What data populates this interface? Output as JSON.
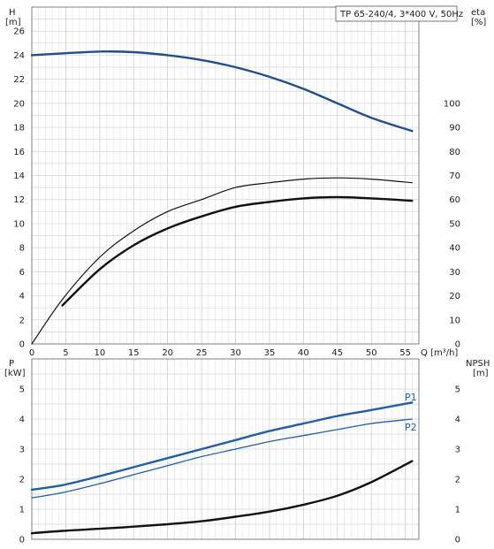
{
  "chart_data": [
    {
      "type": "line",
      "title": "TP 65-240/4, 3*400 V, 50Hz",
      "ylabel_left": "H",
      "ylabel_left_unit": "[m]",
      "ylabel_right": "eta",
      "ylabel_right_unit": "[%]",
      "xlabel": "Q [m³/h]",
      "xlim": [
        0,
        57
      ],
      "ylim_left": [
        0,
        28
      ],
      "ylim_right": [
        0,
        140
      ],
      "x_ticks": [
        0,
        5,
        10,
        15,
        20,
        25,
        30,
        35,
        40,
        45,
        50,
        55
      ],
      "y_ticks_left": [
        0,
        2,
        4,
        6,
        8,
        10,
        12,
        14,
        16,
        18,
        20,
        22,
        24,
        26
      ],
      "y_ticks_right": [
        0,
        10,
        20,
        30,
        40,
        50,
        60,
        70,
        80,
        90,
        100
      ],
      "grid": true,
      "series": [
        {
          "axis": "left",
          "color": "#1f4f8f",
          "x": [
            0,
            4.5,
            10,
            15,
            20,
            25,
            30,
            35,
            40,
            45,
            50,
            56
          ],
          "y": [
            24.0,
            24.15,
            24.3,
            24.25,
            24.0,
            23.6,
            23.0,
            22.2,
            21.2,
            20.0,
            18.8,
            17.7
          ]
        },
        {
          "axis": "right",
          "color": "#111111",
          "x": [
            0,
            4.5,
            10,
            15,
            20,
            25,
            30,
            35,
            40,
            45,
            50,
            56
          ],
          "y": [
            0,
            18.5,
            36,
            47,
            55,
            60,
            65,
            67,
            68.5,
            69,
            68.5,
            67
          ]
        },
        {
          "axis": "right",
          "color": "#111111",
          "x": [
            4.5,
            10,
            15,
            20,
            25,
            30,
            35,
            40,
            45,
            50,
            56
          ],
          "y": [
            16,
            31,
            41,
            48,
            53,
            57,
            59,
            60.5,
            61,
            60.5,
            59.5
          ]
        }
      ]
    },
    {
      "type": "line",
      "ylabel_left": "P",
      "ylabel_left_unit": "[kW]",
      "ylabel_right": "NPSH",
      "ylabel_right_unit": "[m]",
      "xlim": [
        0,
        57
      ],
      "ylim_left": [
        0,
        6
      ],
      "ylim_right": [
        0,
        6
      ],
      "x_ticks": [
        0,
        5,
        10,
        15,
        20,
        25,
        30,
        35,
        40,
        45,
        50,
        55
      ],
      "y_ticks_left": [
        0,
        1,
        2,
        3,
        4,
        5
      ],
      "y_ticks_right": [
        0,
        1,
        2,
        3,
        4,
        5
      ],
      "grid": true,
      "series": [
        {
          "name": "P1",
          "axis": "left",
          "color": "#1f5fa8",
          "x": [
            0,
            4.5,
            10,
            15,
            20,
            25,
            30,
            35,
            40,
            45,
            50,
            56
          ],
          "y": [
            1.65,
            1.8,
            2.1,
            2.4,
            2.7,
            3.0,
            3.3,
            3.6,
            3.85,
            4.1,
            4.3,
            4.55
          ]
        },
        {
          "name": "P2",
          "axis": "left",
          "color": "#1f5fa8",
          "x": [
            0,
            4.5,
            10,
            15,
            20,
            25,
            30,
            35,
            40,
            45,
            50,
            56
          ],
          "y": [
            1.38,
            1.55,
            1.85,
            2.15,
            2.45,
            2.75,
            3.0,
            3.25,
            3.45,
            3.65,
            3.85,
            4.0
          ]
        },
        {
          "axis": "right",
          "color": "#111111",
          "x": [
            0,
            4.5,
            10,
            15,
            20,
            25,
            30,
            35,
            40,
            45,
            50,
            56
          ],
          "y": [
            0.2,
            0.28,
            0.35,
            0.42,
            0.5,
            0.6,
            0.75,
            0.92,
            1.15,
            1.45,
            1.9,
            2.6
          ]
        }
      ]
    }
  ]
}
